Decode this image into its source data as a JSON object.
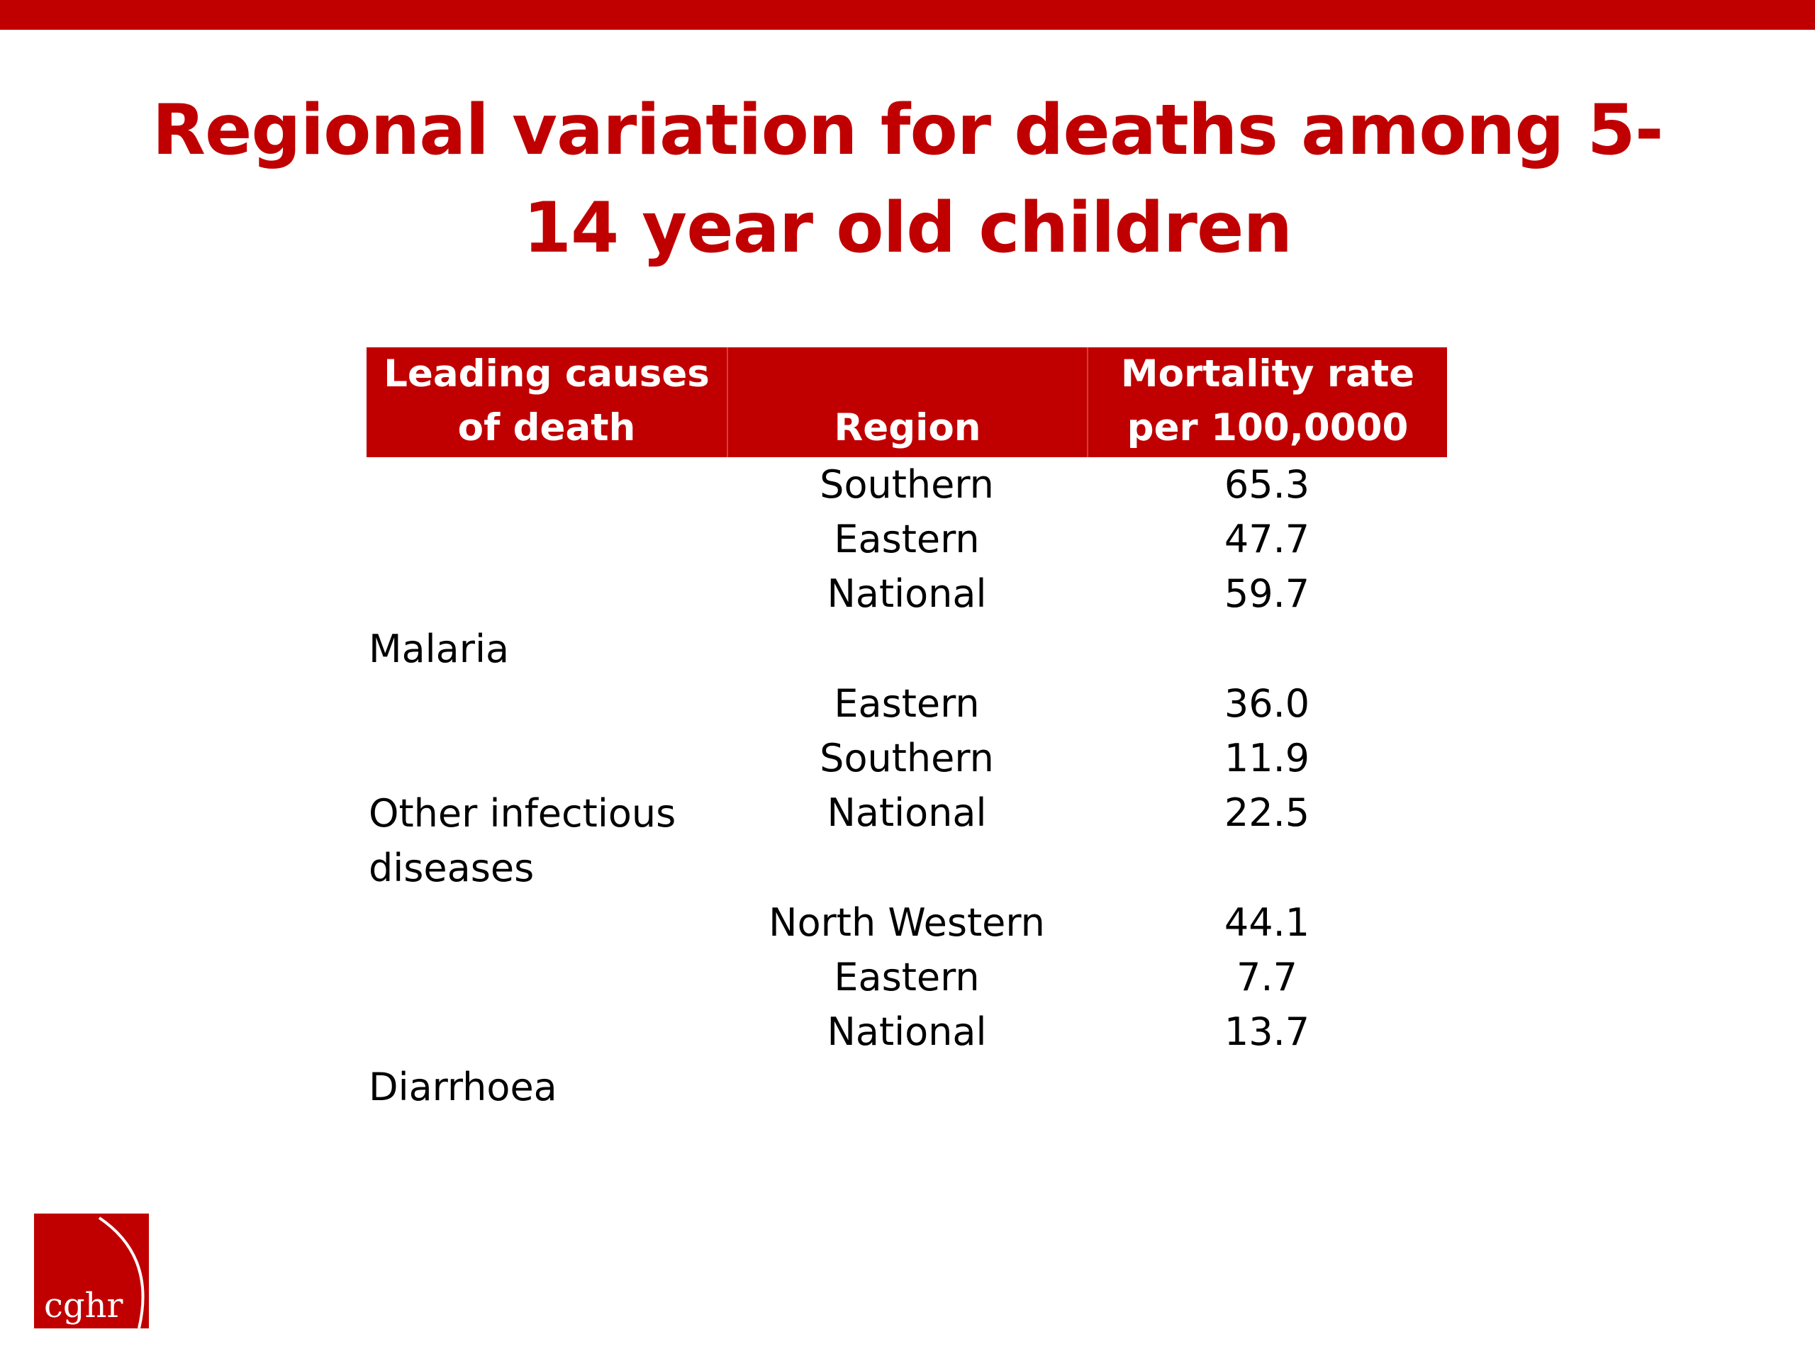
{
  "colors": {
    "accent": "#c00000",
    "text": "#000000",
    "header_text": "#ffffff",
    "background": "#ffffff"
  },
  "title": "Regional variation for deaths among 5-14 year old children",
  "table": {
    "headers": {
      "cause": "Leading causes of death",
      "region": "Region",
      "rate": "Mortality rate per 100,0000"
    },
    "groups": [
      {
        "cause": "Malaria",
        "rows": [
          {
            "region": "Southern",
            "rate": "65.3"
          },
          {
            "region": "Eastern",
            "rate": "47.7"
          },
          {
            "region": "National",
            "rate": "59.7"
          }
        ]
      },
      {
        "cause": "Other infectious diseases",
        "rows": [
          {
            "region": "Eastern",
            "rate": "36.0"
          },
          {
            "region": "Southern",
            "rate": "11.9"
          },
          {
            "region": "National",
            "rate": "22.5"
          }
        ]
      },
      {
        "cause": "Diarrhoea",
        "rows": [
          {
            "region": "North Western",
            "rate": "44.1"
          },
          {
            "region": "Eastern",
            "rate": "7.7"
          },
          {
            "region": "National",
            "rate": "13.7"
          }
        ]
      }
    ]
  },
  "logo": {
    "text": "cghr",
    "icon": "cghr-logo-icon"
  }
}
